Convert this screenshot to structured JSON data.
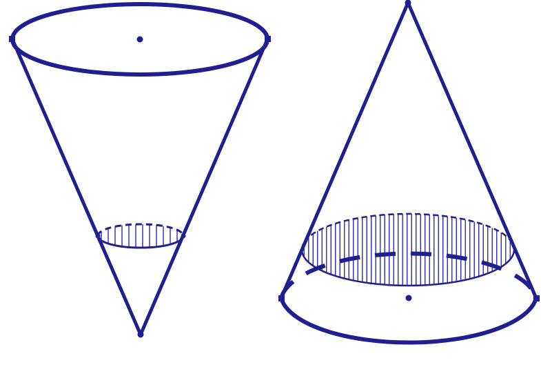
{
  "figure": {
    "stroke_color": "#1f1f8f",
    "hatch_color": "#2a2ab0",
    "background": "#ffffff",
    "shapes": [
      {
        "name": "inverted-cone",
        "orientation": "apex-down",
        "has_center_point": true,
        "water_level_fraction": 0.25,
        "hatched_section": true
      },
      {
        "name": "upright-cone",
        "orientation": "apex-up",
        "has_center_point": true,
        "water_level_fraction": 0.75,
        "hatched_section": true
      }
    ]
  }
}
